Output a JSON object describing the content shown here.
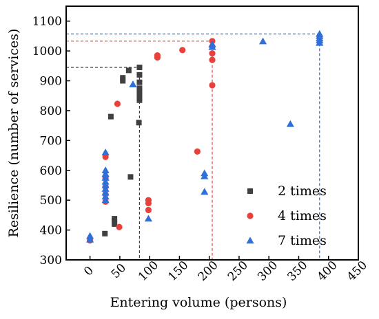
{
  "chart_data": {
    "type": "scatter",
    "title": "",
    "xlabel": "Entering volume (persons)",
    "ylabel": "Resilience (number of services)",
    "xlim": [
      -40,
      450
    ],
    "ylim": [
      300,
      1150
    ],
    "xticks": [
      "0",
      "50",
      "100",
      "150",
      "200",
      "250",
      "300",
      "350",
      "400",
      "450"
    ],
    "yticks": [
      "300",
      "400",
      "500",
      "600",
      "700",
      "800",
      "900",
      "1000",
      "1100"
    ],
    "grid": false,
    "legend_position": "bottom-right",
    "series": [
      {
        "name": "2 times",
        "marker": "square",
        "color": "#404040",
        "points": [
          [
            25,
            388
          ],
          [
            35,
            780
          ],
          [
            41,
            420
          ],
          [
            41,
            430
          ],
          [
            41,
            438
          ],
          [
            55,
            900
          ],
          [
            55,
            910
          ],
          [
            65,
            935
          ],
          [
            68,
            578
          ],
          [
            82,
            760
          ],
          [
            83,
            835
          ],
          [
            83,
            850
          ],
          [
            83,
            865
          ],
          [
            83,
            875
          ],
          [
            83,
            895
          ],
          [
            83,
            920
          ],
          [
            83,
            945
          ]
        ]
      },
      {
        "name": "4 times",
        "marker": "circle",
        "color": "#e8413c",
        "points": [
          [
            0,
            365
          ],
          [
            26,
            495
          ],
          [
            26,
            520
          ],
          [
            26,
            545
          ],
          [
            26,
            575
          ],
          [
            26,
            645
          ],
          [
            49,
            410
          ],
          [
            46,
            823
          ],
          [
            98,
            467
          ],
          [
            98,
            490
          ],
          [
            98,
            500
          ],
          [
            113,
            978
          ],
          [
            113,
            985
          ],
          [
            155,
            1003
          ],
          [
            180,
            663
          ],
          [
            205,
            885
          ],
          [
            205,
            970
          ],
          [
            205,
            992
          ],
          [
            205,
            1015
          ],
          [
            205,
            1033
          ]
        ]
      },
      {
        "name": "7 times",
        "marker": "triangle",
        "color": "#2e6fd8",
        "points": [
          [
            0,
            368
          ],
          [
            0,
            380
          ],
          [
            26,
            500
          ],
          [
            26,
            512
          ],
          [
            26,
            525
          ],
          [
            26,
            538
          ],
          [
            26,
            550
          ],
          [
            26,
            562
          ],
          [
            26,
            575
          ],
          [
            26,
            588
          ],
          [
            26,
            600
          ],
          [
            26,
            660
          ],
          [
            72,
            888
          ],
          [
            98,
            438
          ],
          [
            192,
            528
          ],
          [
            192,
            580
          ],
          [
            192,
            590
          ],
          [
            205,
            1013
          ],
          [
            205,
            1022
          ],
          [
            290,
            1032
          ],
          [
            336,
            755
          ],
          [
            385,
            1027
          ],
          [
            385,
            1035
          ],
          [
            385,
            1042
          ],
          [
            385,
            1050
          ],
          [
            385,
            1057
          ]
        ]
      }
    ],
    "reference_lines": [
      {
        "series": "2 times",
        "x": 83,
        "y": 945,
        "color": "#404040"
      },
      {
        "series": "4 times",
        "x": 205,
        "y": 1033,
        "color": "#e8413c"
      },
      {
        "series": "7 times",
        "x": 385,
        "y": 1057,
        "color": "#2e6fd8"
      }
    ]
  }
}
